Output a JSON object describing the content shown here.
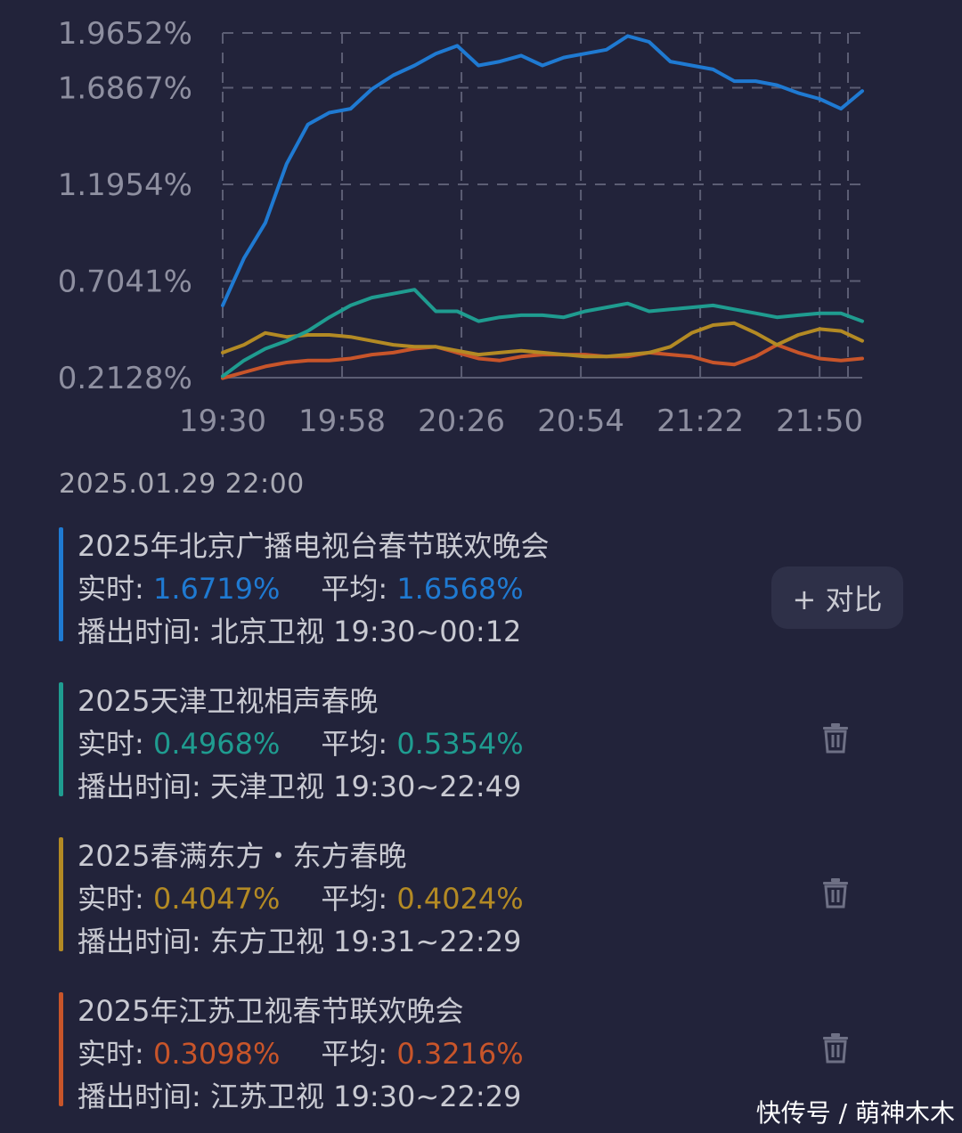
{
  "chart_data": {
    "type": "line",
    "y_ticks": [
      "1.9652%",
      "1.6867%",
      "1.1954%",
      "0.7041%",
      "0.2128%"
    ],
    "y_tick_values": [
      1.9652,
      1.6867,
      1.1954,
      0.7041,
      0.2128
    ],
    "x_ticks": [
      "19:30",
      "19:58",
      "20:26",
      "20:54",
      "21:22",
      "21:50"
    ],
    "x_tick_minutes": [
      0,
      28,
      56,
      84,
      112,
      140
    ],
    "ylim": [
      0.2128,
      1.9652
    ],
    "xlim_minutes": [
      0,
      150
    ],
    "grid": true,
    "x": [
      0,
      5,
      10,
      15,
      20,
      25,
      30,
      35,
      40,
      45,
      50,
      55,
      60,
      65,
      70,
      75,
      80,
      85,
      90,
      95,
      100,
      105,
      110,
      115,
      120,
      125,
      130,
      135,
      140,
      145,
      150
    ],
    "series": [
      {
        "color": "#1f7ad2",
        "values": [
          0.58,
          0.82,
          1.0,
          1.3,
          1.5,
          1.56,
          1.58,
          1.68,
          1.75,
          1.8,
          1.86,
          1.9,
          1.8,
          1.82,
          1.85,
          1.8,
          1.84,
          1.86,
          1.88,
          1.95,
          1.92,
          1.82,
          1.8,
          1.78,
          1.72,
          1.72,
          1.7,
          1.66,
          1.63,
          1.58,
          1.67
        ]
      },
      {
        "color": "#1f9c90",
        "values": [
          0.22,
          0.3,
          0.36,
          0.4,
          0.45,
          0.52,
          0.58,
          0.62,
          0.64,
          0.66,
          0.55,
          0.55,
          0.5,
          0.52,
          0.53,
          0.53,
          0.52,
          0.55,
          0.57,
          0.59,
          0.55,
          0.56,
          0.57,
          0.58,
          0.56,
          0.54,
          0.52,
          0.53,
          0.54,
          0.54,
          0.5
        ]
      },
      {
        "color": "#b38a24",
        "values": [
          0.34,
          0.38,
          0.44,
          0.42,
          0.43,
          0.43,
          0.42,
          0.4,
          0.38,
          0.37,
          0.37,
          0.35,
          0.33,
          0.34,
          0.35,
          0.34,
          0.33,
          0.32,
          0.32,
          0.33,
          0.34,
          0.37,
          0.44,
          0.48,
          0.49,
          0.44,
          0.38,
          0.43,
          0.46,
          0.45,
          0.4
        ]
      },
      {
        "color": "#c8552a",
        "values": [
          0.21,
          0.24,
          0.27,
          0.29,
          0.3,
          0.3,
          0.31,
          0.33,
          0.34,
          0.36,
          0.37,
          0.34,
          0.31,
          0.3,
          0.32,
          0.33,
          0.33,
          0.33,
          0.32,
          0.32,
          0.34,
          0.33,
          0.32,
          0.29,
          0.28,
          0.32,
          0.38,
          0.34,
          0.31,
          0.3,
          0.31
        ]
      }
    ]
  },
  "date_time": "2025.01.29 22:00",
  "compare_button": {
    "label": "+ 对比"
  },
  "programs": [
    {
      "title": "2025年北京广播电视台春节联欢晚会",
      "realtime_label": "实时: ",
      "realtime": "1.6719%",
      "average_label": "平均: ",
      "average": "1.6568%",
      "airtime_label": "播出时间: ",
      "channel": "北京卫视",
      "airtime": "19:30~00:12",
      "color": "#1f7ad2",
      "action_icon": "compare-button"
    },
    {
      "title": "2025天津卫视相声春晚",
      "realtime_label": "实时: ",
      "realtime": "0.4968%",
      "average_label": "平均: ",
      "average": "0.5354%",
      "airtime_label": "播出时间: ",
      "channel": "天津卫视",
      "airtime": "19:30~22:49",
      "color": "#1f9c90",
      "action_icon": "trash-icon"
    },
    {
      "title": "2025春满东方・东方春晚",
      "realtime_label": "实时: ",
      "realtime": "0.4047%",
      "average_label": "平均: ",
      "average": "0.4024%",
      "airtime_label": "播出时间: ",
      "channel": "东方卫视",
      "airtime": "19:31~22:29",
      "color": "#b38a24",
      "action_icon": "trash-icon"
    },
    {
      "title": "2025年江苏卫视春节联欢晚会",
      "realtime_label": "实时: ",
      "realtime": "0.3098%",
      "average_label": "平均: ",
      "average": "0.3216%",
      "airtime_label": "播出时间: ",
      "channel": "江苏卫视",
      "airtime": "19:30~22:29",
      "color": "#c8552a",
      "action_icon": "trash-icon"
    }
  ],
  "watermark": "快传号 / 萌神木木"
}
